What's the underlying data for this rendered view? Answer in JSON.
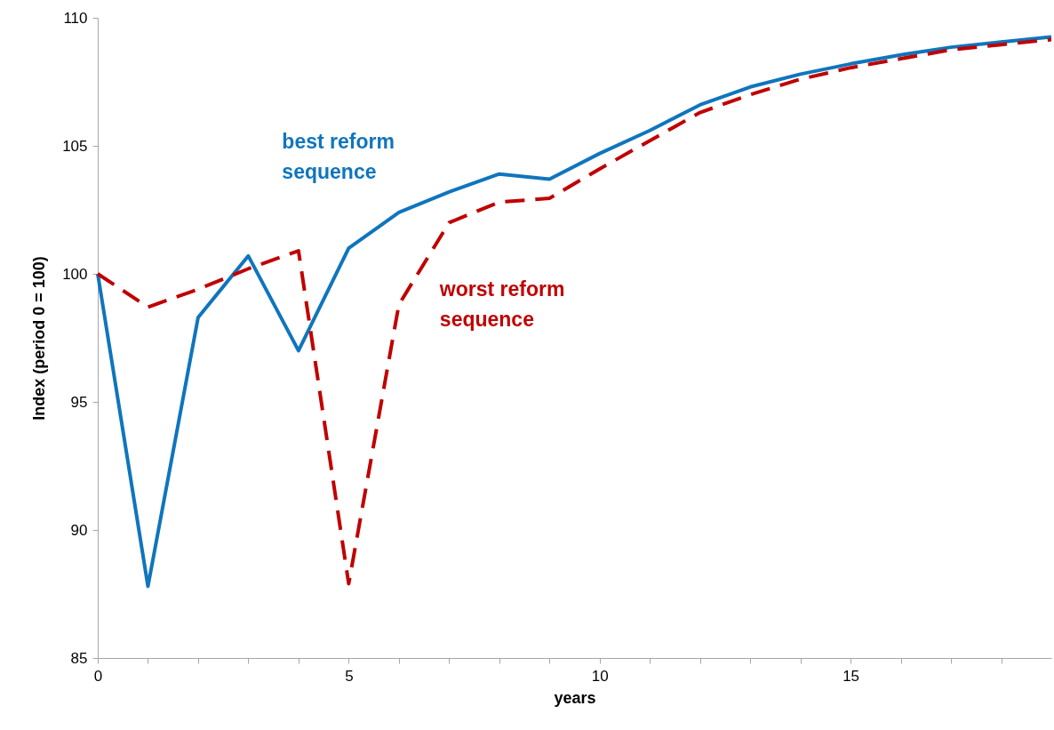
{
  "chart_data": {
    "type": "line",
    "xlabel": "years",
    "ylabel": "Index (period 0 = 100)",
    "x": [
      0,
      1,
      2,
      3,
      4,
      5,
      6,
      7,
      8,
      9,
      10,
      11,
      12,
      13,
      14,
      15,
      16,
      17,
      18,
      19
    ],
    "xlim": [
      0,
      19
    ],
    "xticks": [
      0,
      {
        "value": 1,
        "label": null
      },
      {
        "value": 2,
        "label": null
      },
      {
        "value": 3,
        "label": null
      },
      {
        "value": 4,
        "label": null
      },
      5,
      {
        "value": 6,
        "label": null
      },
      {
        "value": 7,
        "label": null
      },
      {
        "value": 8,
        "label": null
      },
      {
        "value": 9,
        "label": null
      },
      10,
      {
        "value": 11,
        "label": null
      },
      {
        "value": 12,
        "label": null
      },
      {
        "value": 13,
        "label": null
      },
      {
        "value": 14,
        "label": null
      },
      15,
      {
        "value": 16,
        "label": null
      },
      {
        "value": 17,
        "label": null
      },
      {
        "value": 18,
        "label": null
      }
    ],
    "ylim": [
      85,
      110
    ],
    "yticks": [
      85,
      90,
      95,
      100,
      105,
      110
    ],
    "grid": false,
    "series": [
      {
        "name": "best reform sequence",
        "color": "#0f75bd",
        "line_style": "solid",
        "values": [
          100,
          87.8,
          98.3,
          100.7,
          97.0,
          101.0,
          102.4,
          103.2,
          103.9,
          103.7,
          104.7,
          105.6,
          106.6,
          107.3,
          107.8,
          108.2,
          108.55,
          108.85,
          109.05,
          109.25
        ]
      },
      {
        "name": "worst reform sequence",
        "color": "#c00000",
        "line_style": "dashed",
        "values": [
          100,
          98.7,
          99.4,
          100.2,
          100.9,
          87.9,
          98.8,
          102.0,
          102.8,
          102.95,
          104.1,
          105.2,
          106.3,
          107.0,
          107.6,
          108.05,
          108.4,
          108.75,
          108.95,
          109.15
        ]
      }
    ]
  }
}
